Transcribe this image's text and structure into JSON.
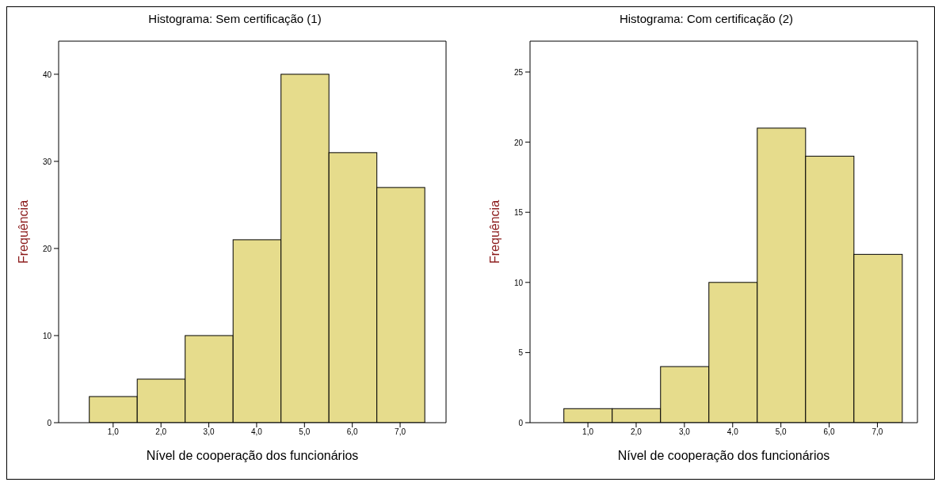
{
  "chart_data": [
    {
      "type": "histogram",
      "title": "Histograma: Sem certificação (1)",
      "xlabel": "Nível de cooperação dos funcionários",
      "ylabel": "Frequência",
      "bins": [
        0.5,
        1.5,
        2.5,
        3.5,
        4.5,
        5.5,
        6.5,
        7.5
      ],
      "values": [
        3,
        5,
        10,
        21,
        40,
        31,
        27
      ],
      "color": "#e6dc8c",
      "xlim": [
        -0.14,
        7.96
      ],
      "ylim": [
        0,
        43.8
      ],
      "xticks": [
        {
          "value": 1,
          "label": "1,0"
        },
        {
          "value": 2,
          "label": "2,0"
        },
        {
          "value": 3,
          "label": "3,0"
        },
        {
          "value": 4,
          "label": "4,0"
        },
        {
          "value": 5,
          "label": "5,0"
        },
        {
          "value": 6,
          "label": "6,0"
        },
        {
          "value": 7,
          "label": "7,0"
        }
      ],
      "yticks": [
        0,
        10,
        20,
        30,
        40
      ],
      "grid": false,
      "legend": false
    },
    {
      "type": "histogram",
      "title": "Histograma: Com certificação (2)",
      "xlabel": "Nível de cooperação dos funcionários",
      "ylabel": "Frequência",
      "bins": [
        0.5,
        1.5,
        2.5,
        3.5,
        4.5,
        5.5,
        6.5,
        7.5
      ],
      "values": [
        1,
        1,
        4,
        10,
        21,
        19,
        12
      ],
      "color": "#e6dc8c",
      "xlim": [
        -0.2,
        7.83
      ],
      "ylim": [
        0,
        27.2
      ],
      "xticks": [
        {
          "value": 1,
          "label": "1,0"
        },
        {
          "value": 2,
          "label": "2,0"
        },
        {
          "value": 3,
          "label": "3,0"
        },
        {
          "value": 4,
          "label": "4,0"
        },
        {
          "value": 5,
          "label": "5,0"
        },
        {
          "value": 6,
          "label": "6,0"
        },
        {
          "value": 7,
          "label": "7,0"
        }
      ],
      "yticks": [
        0,
        5,
        10,
        15,
        20,
        25
      ],
      "grid": false,
      "legend": false
    }
  ]
}
